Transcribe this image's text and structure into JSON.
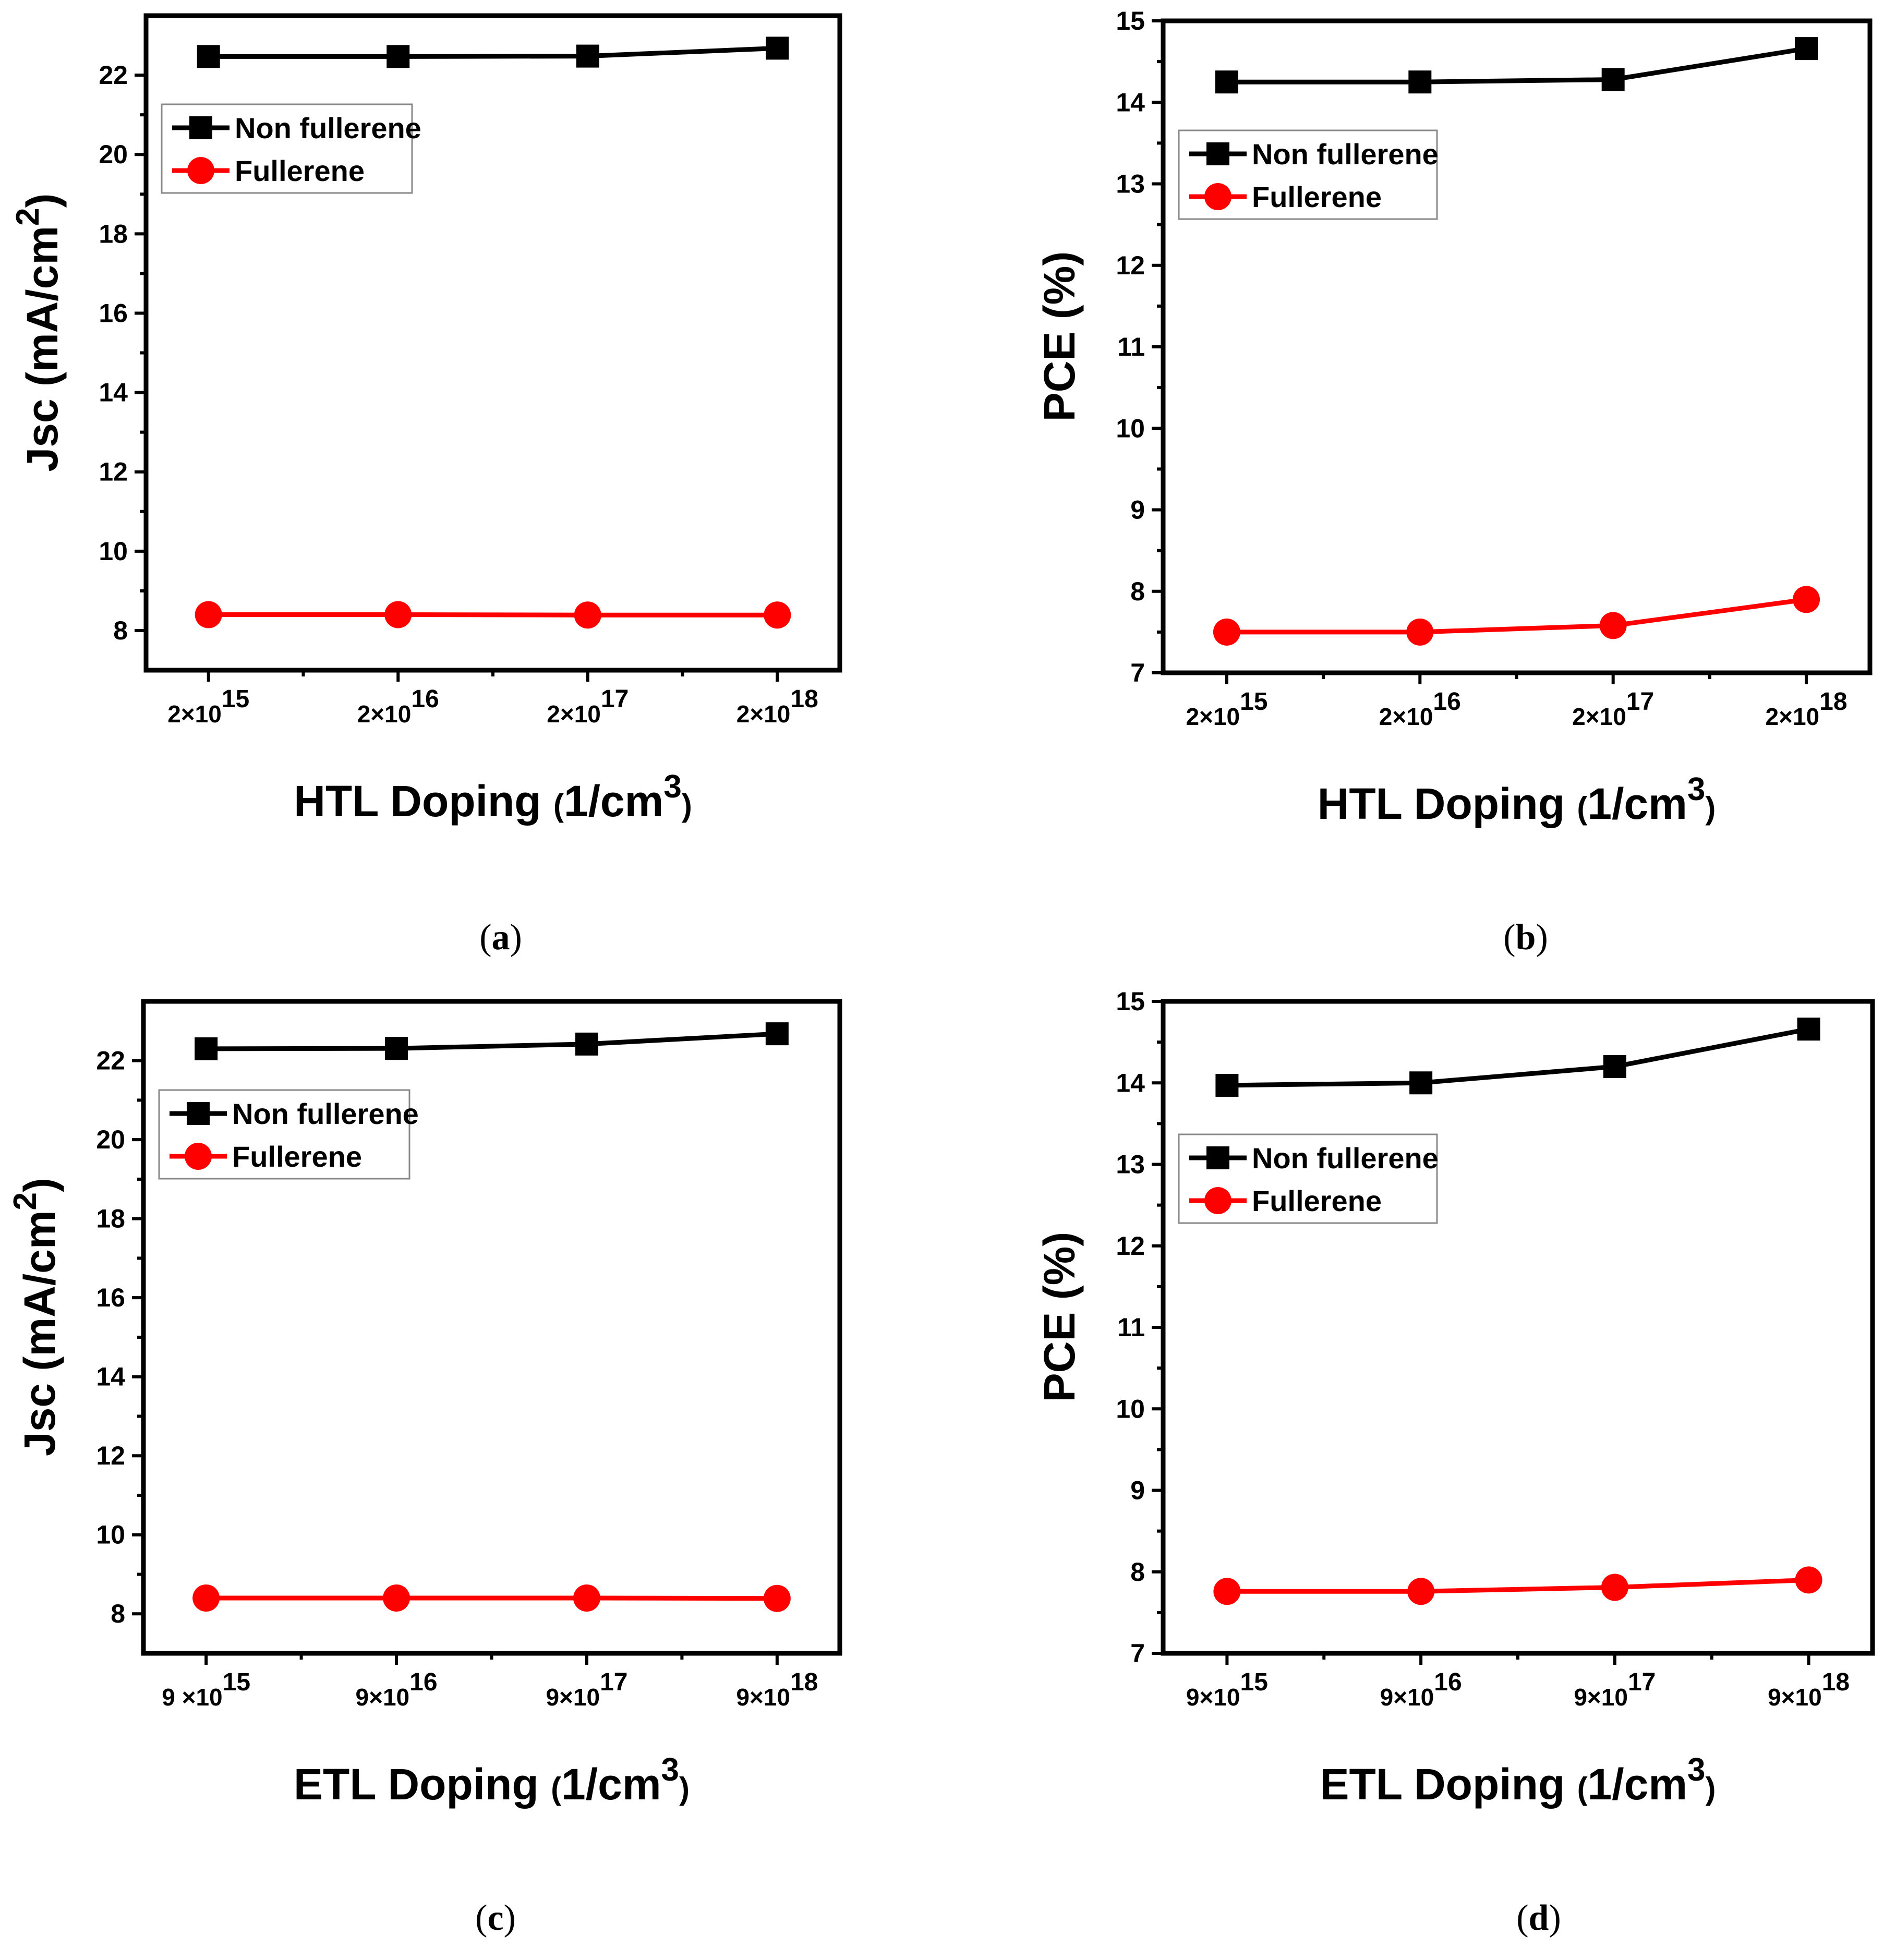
{
  "chart_data": [
    {
      "type": "line",
      "panel_label": "(a)",
      "ylabel": "Jsc (mA/cm2)",
      "xlabel": "HTL Doping (1/cm3)",
      "ylim": [
        7,
        23.5
      ],
      "yticks": [
        8,
        10,
        12,
        14,
        16,
        18,
        20,
        22
      ],
      "categories": [
        "2×10^15",
        "2×10^16",
        "2×10^17",
        "2×10^18"
      ],
      "legend": "top-left",
      "series": [
        {
          "name": "Non fullerene",
          "marker": "square",
          "color": "#000000",
          "values": [
            22.47,
            22.47,
            22.48,
            22.68
          ]
        },
        {
          "name": "Fullerene",
          "marker": "circle",
          "color": "#ff0000",
          "values": [
            8.4,
            8.4,
            8.39,
            8.39
          ]
        }
      ]
    },
    {
      "type": "line",
      "panel_label": "(b)",
      "ylabel": "PCE (%)",
      "xlabel": "HTL Doping (1/cm3)",
      "ylim": [
        7,
        15
      ],
      "yticks": [
        7,
        8,
        9,
        10,
        11,
        12,
        13,
        14,
        15
      ],
      "categories": [
        "2×10^15",
        "2×10^16",
        "2×10^17",
        "2×10^18"
      ],
      "legend": "top-left",
      "series": [
        {
          "name": "Non fullerene",
          "marker": "square",
          "color": "#000000",
          "values": [
            14.25,
            14.25,
            14.28,
            14.66
          ]
        },
        {
          "name": "Fullerene",
          "marker": "circle",
          "color": "#ff0000",
          "values": [
            7.5,
            7.5,
            7.58,
            7.9
          ]
        }
      ]
    },
    {
      "type": "line",
      "panel_label": "(c)",
      "ylabel": "Jsc (mA/cm2)",
      "xlabel": "ETL Doping (1/cm3)",
      "ylim": [
        7,
        23.5
      ],
      "yticks": [
        8,
        10,
        12,
        14,
        16,
        18,
        20,
        22
      ],
      "categories": [
        "9 ×10^15",
        "9×10^16",
        "9×10^17",
        "9×10^18"
      ],
      "legend": "top-left",
      "series": [
        {
          "name": "Non fullerene",
          "marker": "square",
          "color": "#000000",
          "values": [
            22.3,
            22.31,
            22.42,
            22.68
          ]
        },
        {
          "name": "Fullerene",
          "marker": "circle",
          "color": "#ff0000",
          "values": [
            8.4,
            8.4,
            8.4,
            8.39
          ]
        }
      ]
    },
    {
      "type": "line",
      "panel_label": "(d)",
      "ylabel": "PCE (%)",
      "xlabel": "ETL Doping (1/cm3)",
      "ylim": [
        7,
        15
      ],
      "yticks": [
        7,
        8,
        9,
        10,
        11,
        12,
        13,
        14,
        15
      ],
      "categories": [
        "9×10^15",
        "9×10^16",
        "9×10^17",
        "9×10^18"
      ],
      "legend": "top-left",
      "series": [
        {
          "name": "Non fullerene",
          "marker": "square",
          "color": "#000000",
          "values": [
            13.97,
            14.0,
            14.2,
            14.66
          ]
        },
        {
          "name": "Fullerene",
          "marker": "circle",
          "color": "#ff0000",
          "values": [
            7.76,
            7.76,
            7.81,
            7.9
          ]
        }
      ]
    }
  ]
}
